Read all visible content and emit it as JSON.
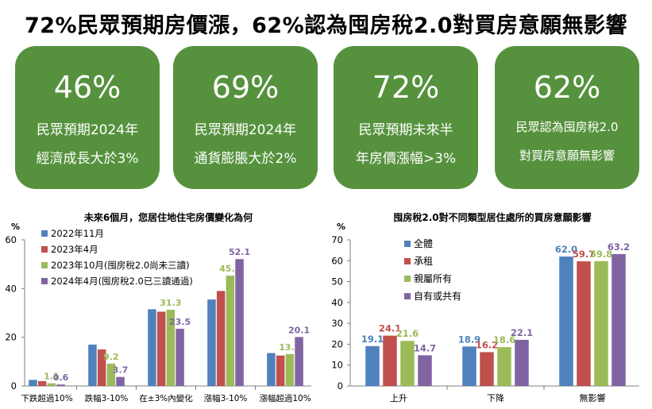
{
  "headline": "72%民眾預期房價漲，62%認為囤房稅2.0對買房意願無影響",
  "cards": [
    {
      "value": "46%",
      "line1": "民眾預期2024年",
      "line2": "經濟成長大於3%"
    },
    {
      "value": "69%",
      "line1": "民眾預期2024年",
      "line2": "通貨膨脹大於2%"
    },
    {
      "value": "72%",
      "line1": "民眾預期未來半",
      "line2": "年房價漲幅>3%"
    },
    {
      "value": "62%",
      "line1": "民眾認為囤房稅2.0",
      "line2": "對買房意願無影響"
    }
  ],
  "colors": {
    "card": "#56923d",
    "blue": "#4f81bd",
    "red": "#c0504d",
    "green": "#9bbb59",
    "purple": "#8064a2",
    "label_gray": "#7f7f7f"
  },
  "chart_data": [
    {
      "type": "bar",
      "title": "未來6個月，您居住地住宅房價變化為何",
      "ylabel": "%",
      "ylim": [
        0,
        60
      ],
      "yticks": [
        0,
        20,
        40,
        60
      ],
      "grid": false,
      "legend": "top-left",
      "categories": [
        "下跌超過10%",
        "跌幅3-10%",
        "在±3%內變化",
        "漲幅3-10%",
        "漲幅超過10%"
      ],
      "series": [
        {
          "name": "2022年11月",
          "color": "#4f81bd",
          "values": [
            2.5,
            17.0,
            31.5,
            35.5,
            13.5
          ],
          "labels": [
            "",
            "",
            "",
            "",
            ""
          ]
        },
        {
          "name": "2023年4月",
          "color": "#c0504d",
          "values": [
            2.0,
            15.0,
            30.5,
            39.0,
            12.5
          ],
          "labels": [
            "",
            "",
            "",
            "",
            ""
          ]
        },
        {
          "name": "2023年10月(囤房稅2.0尚未三讀)",
          "color": "#9bbb59",
          "values": [
            1.1,
            9.2,
            31.3,
            45.3,
            13.1
          ],
          "labels": [
            "1.1",
            "9.2",
            "31.3",
            "45.3",
            "13.1"
          ]
        },
        {
          "name": "2024年4月(囤房稅2.0已三讀通過)",
          "color": "#8064a2",
          "values": [
            0.6,
            3.7,
            23.5,
            52.1,
            20.1
          ],
          "labels": [
            "0.6",
            "3.7",
            "23.5",
            "52.1",
            "20.1"
          ]
        }
      ]
    },
    {
      "type": "bar",
      "title": "囤房稅2.0對不同類型居住處所的買房意願影響",
      "ylabel": "%",
      "ylim": [
        0,
        70
      ],
      "yticks": [
        0,
        10,
        20,
        30,
        40,
        50,
        60,
        70
      ],
      "grid": false,
      "legend": "top-left",
      "categories": [
        "上升",
        "下降",
        "無影響"
      ],
      "series": [
        {
          "name": "全體",
          "color": "#4f81bd",
          "values": [
            19.1,
            18.9,
            62.0
          ],
          "labels": [
            "19.1",
            "18.9",
            "62.0"
          ]
        },
        {
          "name": "承租",
          "color": "#c0504d",
          "values": [
            24.1,
            16.2,
            59.7
          ],
          "labels": [
            "24.1",
            "16.2",
            "59.7"
          ]
        },
        {
          "name": "親屬所有",
          "color": "#9bbb59",
          "values": [
            21.6,
            18.6,
            59.8
          ],
          "labels": [
            "21.6",
            "18.6",
            "59.8"
          ]
        },
        {
          "name": "自有或共有",
          "color": "#8064a2",
          "values": [
            14.7,
            22.1,
            63.2
          ],
          "labels": [
            "14.7",
            "22.1",
            "63.2"
          ]
        }
      ]
    }
  ]
}
